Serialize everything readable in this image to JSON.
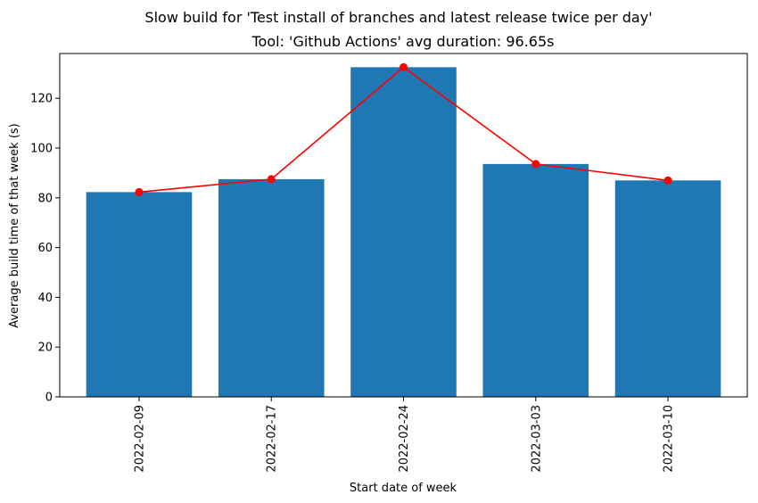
{
  "chart_data": {
    "type": "bar",
    "suptitle": "Slow build for 'Test install of branches and latest release twice per day'",
    "title": "Tool: 'Github Actions' avg duration: 96.65s",
    "xlabel": "Start date of week",
    "ylabel": "Average build time of that week (s)",
    "categories": [
      "2022-02-09",
      "2022-02-17",
      "2022-02-24",
      "2022-03-03",
      "2022-03-10"
    ],
    "values": [
      82.3,
      87.5,
      132.5,
      93.6,
      87.0
    ],
    "line_values": [
      82.3,
      87.5,
      132.5,
      93.6,
      87.0
    ],
    "ylim": [
      0,
      138
    ],
    "yticks": [
      0,
      20,
      40,
      60,
      80,
      100,
      120
    ],
    "grid": false,
    "colors": {
      "bar": "#1f77b4",
      "line": "#ff0000",
      "marker": "#ff0000"
    }
  }
}
